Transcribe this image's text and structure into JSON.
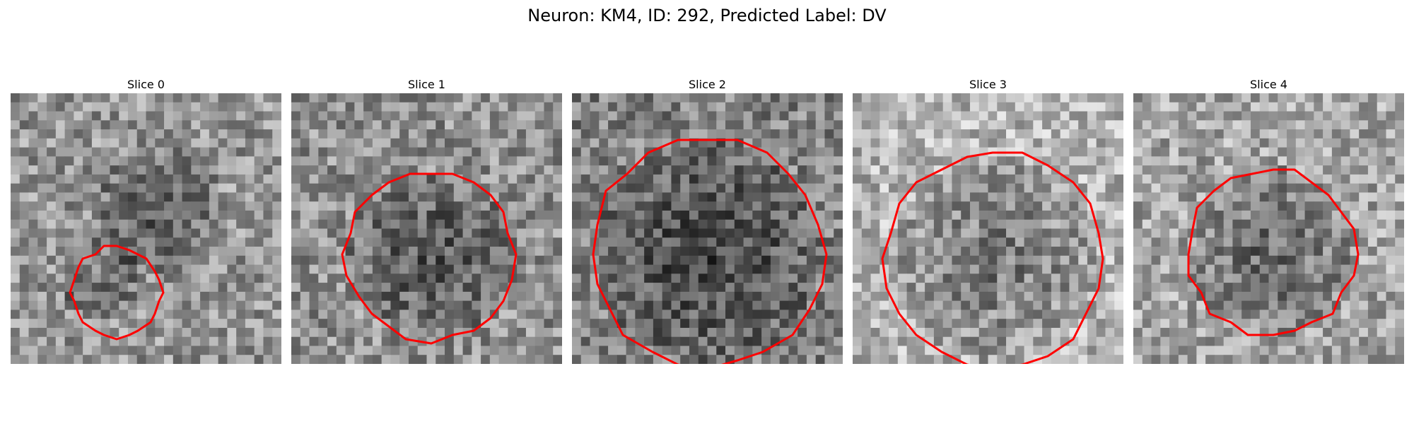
{
  "figure": {
    "title": "Neuron: KM4, ID: 292, Predicted Label: DV"
  },
  "colors": {
    "contour": "#ff0000",
    "background": "#ffffff"
  },
  "panels": [
    {
      "label": "Slice 0",
      "contour": "small roi outline",
      "grid": 30
    },
    {
      "label": "Slice 1",
      "contour": "medium roi outline",
      "grid": 30
    },
    {
      "label": "Slice 2",
      "contour": "large roi outline",
      "grid": 30
    },
    {
      "label": "Slice 3",
      "contour": "large roi outline",
      "grid": 30
    },
    {
      "label": "Slice 4",
      "contour": "medium roi outline",
      "grid": 30
    }
  ]
}
